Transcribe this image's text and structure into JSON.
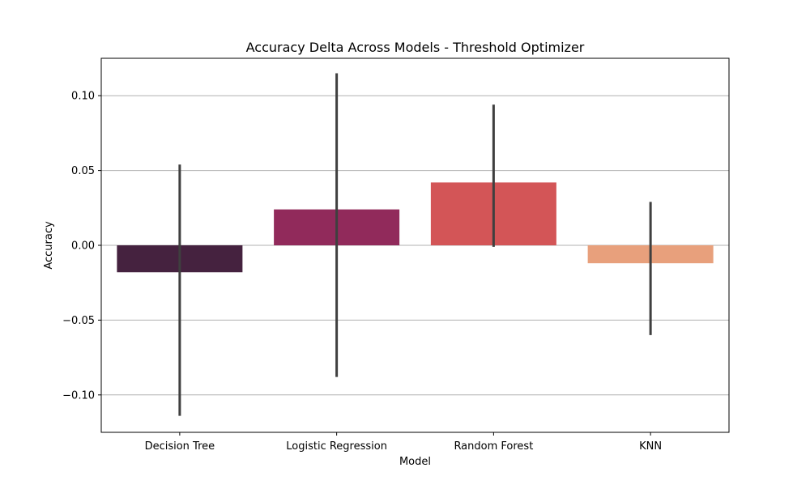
{
  "chart_data": {
    "type": "bar",
    "title": "Accuracy Delta Across Models - Threshold Optimizer",
    "xlabel": "Model",
    "ylabel": "Accuracy",
    "categories": [
      "Decision Tree",
      "Logistic Regression",
      "Random Forest",
      "KNN"
    ],
    "values": [
      -0.018,
      0.024,
      0.042,
      -0.012
    ],
    "error_bars": [
      {
        "low": -0.114,
        "high": 0.054
      },
      {
        "low": -0.088,
        "high": 0.115
      },
      {
        "low": -0.001,
        "high": 0.094
      },
      {
        "low": -0.06,
        "high": 0.029
      }
    ],
    "colors": [
      "#45223f",
      "#912a5b",
      "#d35557",
      "#e8a07c"
    ],
    "ylim": [
      -0.125,
      0.125
    ],
    "yticks": [
      0.1,
      0.05,
      0.0,
      -0.05,
      -0.1
    ],
    "ytick_labels": [
      "0.10",
      "0.05",
      "0.00",
      "−0.05",
      "−0.10"
    ],
    "grid": true,
    "grid_axis": "y",
    "legend": false
  }
}
